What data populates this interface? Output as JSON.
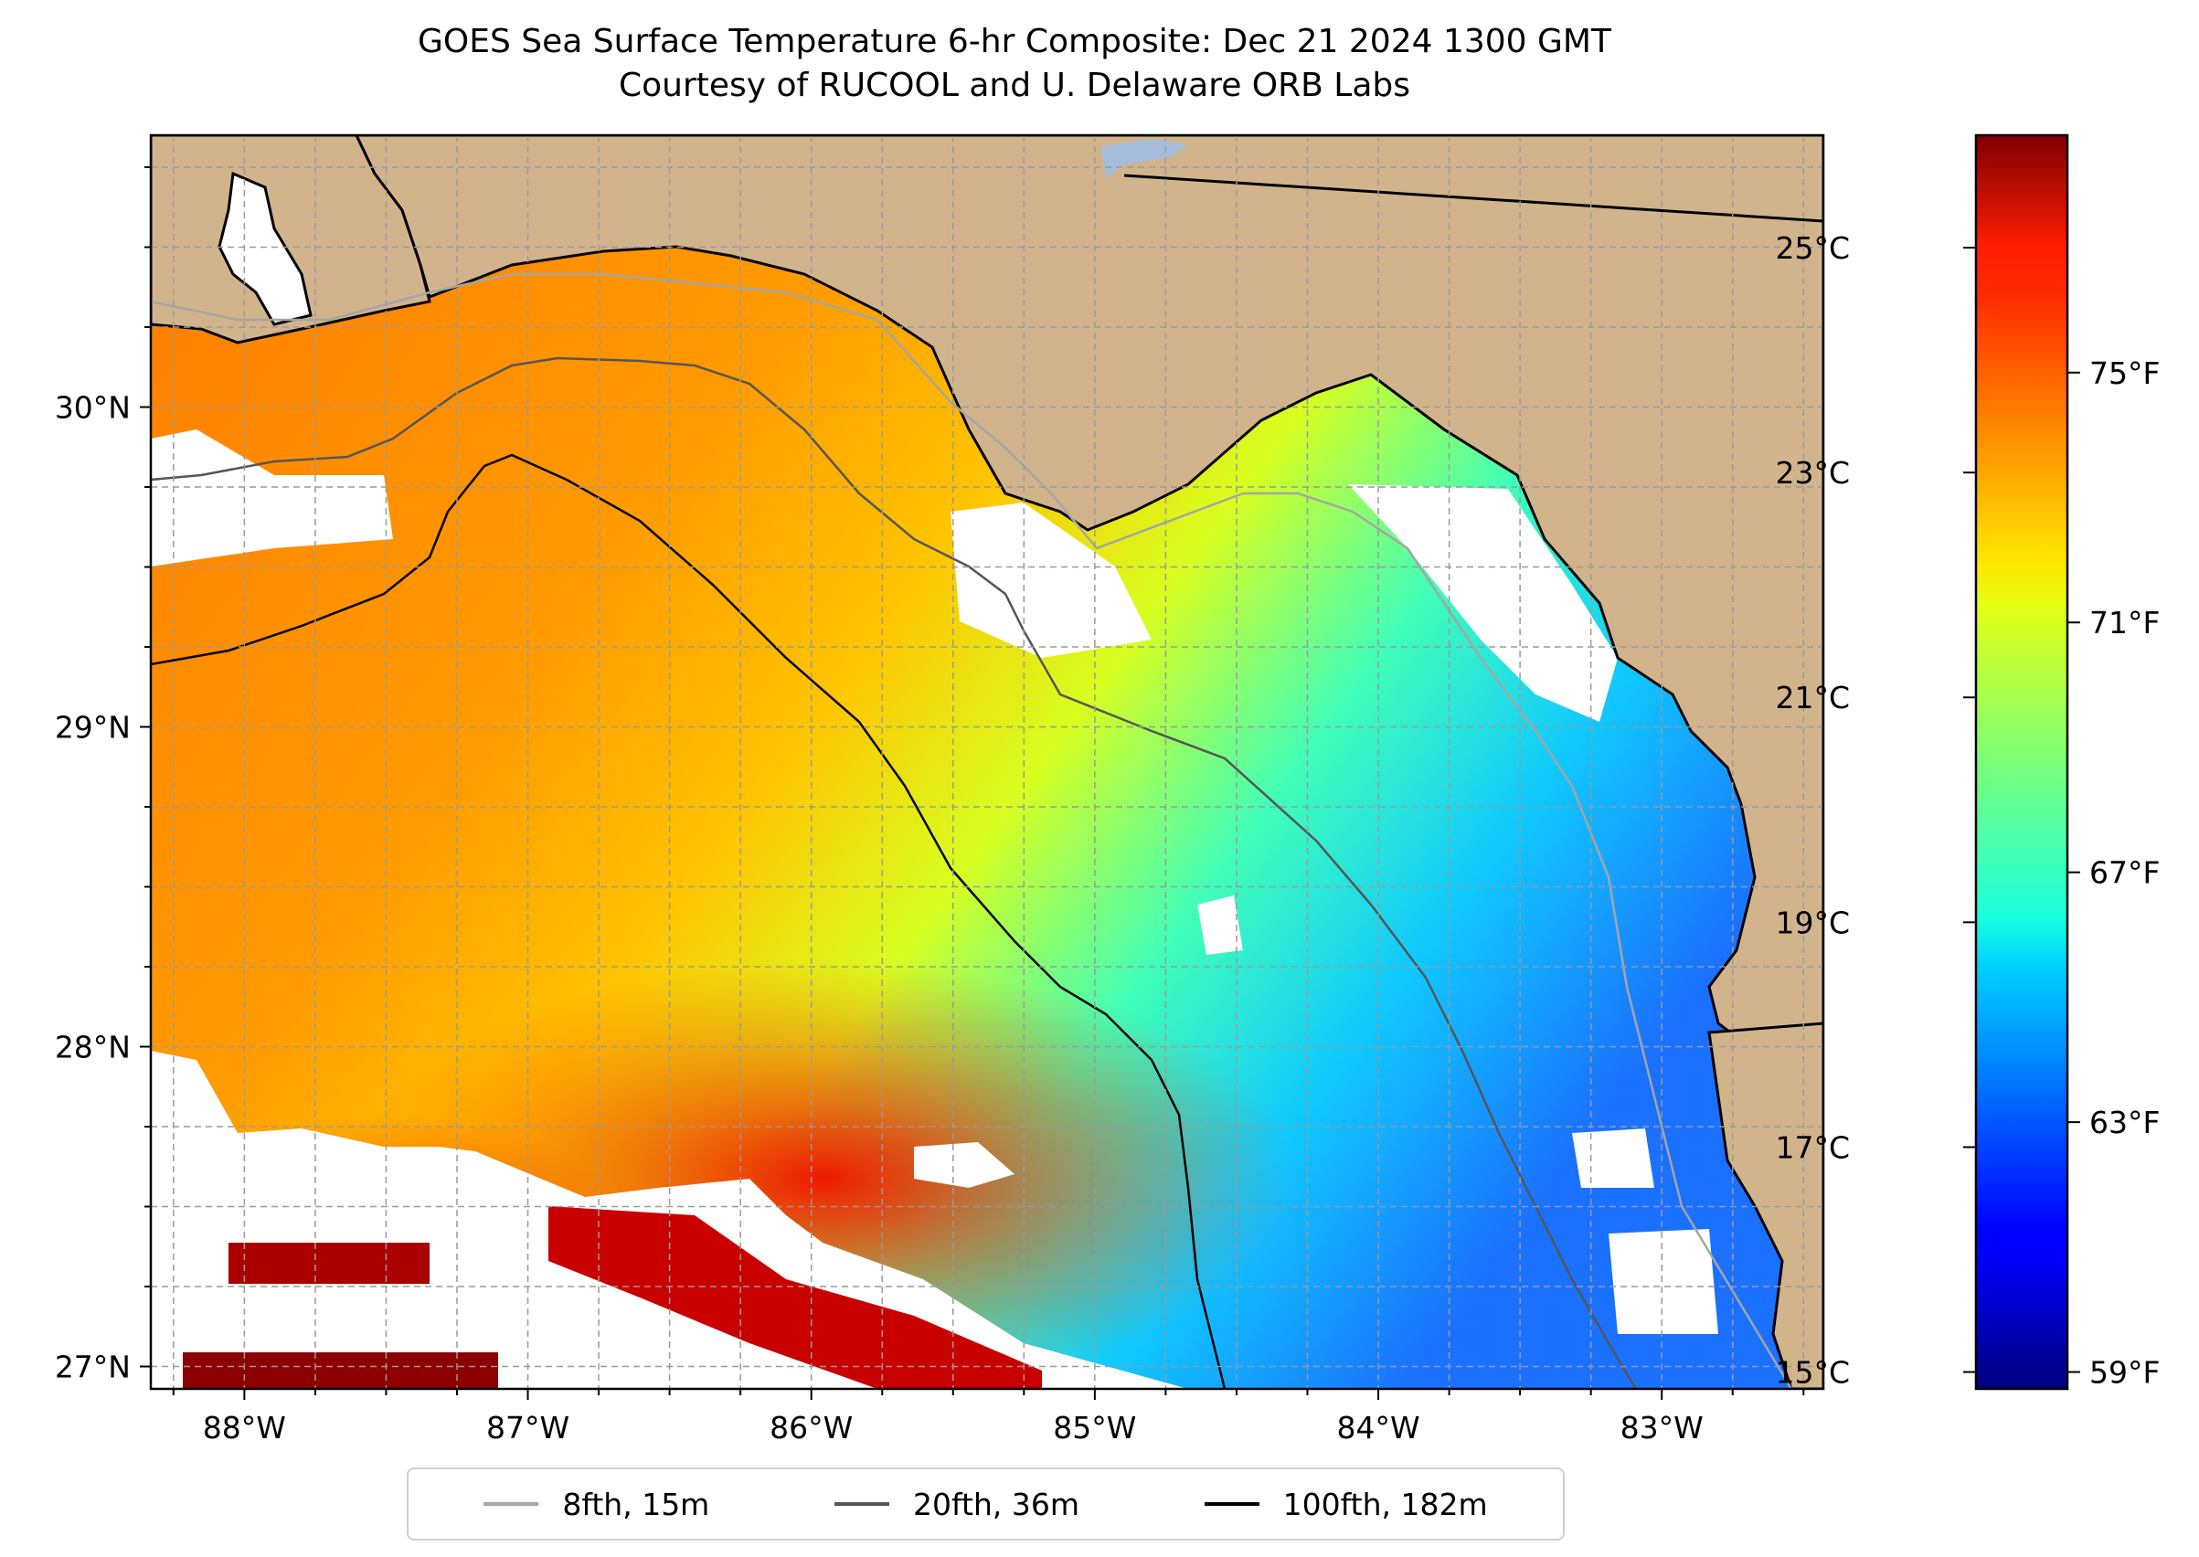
{
  "title": {
    "line1": "GOES Sea Surface Temperature 6-hr Composite: Dec 21 2024 1300 GMT",
    "line2": "Courtesy of RUCOOL and U. Delaware ORB Labs"
  },
  "map": {
    "lon_range": [
      -88.33,
      -82.43
    ],
    "lat_range": [
      26.93,
      30.85
    ],
    "lon_ticks": [
      {
        "value": -88,
        "label": "88°W"
      },
      {
        "value": -87,
        "label": "87°W"
      },
      {
        "value": -86,
        "label": "86°W"
      },
      {
        "value": -85,
        "label": "85°W"
      },
      {
        "value": -84,
        "label": "84°W"
      },
      {
        "value": -83,
        "label": "83°W"
      }
    ],
    "lat_ticks": [
      {
        "value": 27,
        "label": "27°N"
      },
      {
        "value": 28,
        "label": "28°N"
      },
      {
        "value": 29,
        "label": "29°N"
      },
      {
        "value": 30,
        "label": "30°N"
      }
    ],
    "gridlines": "dashed, every 0.25°",
    "land_color": "#d2b48c",
    "no_data_color": "#ffffff"
  },
  "colorbar": {
    "colormap": "jet",
    "celsius_range": [
      14.85,
      26.0
    ],
    "celsius_ticks": [
      {
        "value": 15,
        "label": "15°C"
      },
      {
        "value": 17,
        "label": "17°C"
      },
      {
        "value": 19,
        "label": "19°C"
      },
      {
        "value": 21,
        "label": "21°C"
      },
      {
        "value": 23,
        "label": "23°C"
      },
      {
        "value": 25,
        "label": "25°C"
      }
    ],
    "fahrenheit_ticks": [
      {
        "value": 59,
        "label": "59°F"
      },
      {
        "value": 63,
        "label": "63°F"
      },
      {
        "value": 67,
        "label": "67°F"
      },
      {
        "value": 71,
        "label": "71°F"
      },
      {
        "value": 75,
        "label": "75°F"
      }
    ]
  },
  "legend": {
    "items": [
      {
        "label": "8fth, 15m",
        "color": "#a5a5a5"
      },
      {
        "label": "20fth, 36m",
        "color": "#555555"
      },
      {
        "label": "100fth, 182m",
        "color": "#000000"
      }
    ]
  }
}
